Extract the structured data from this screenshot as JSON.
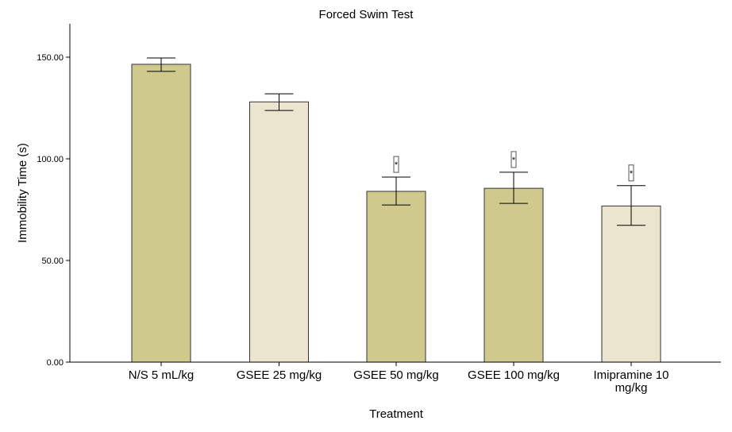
{
  "chart_data": {
    "type": "bar",
    "title": "Forced Swim Test",
    "xlabel": "Treatment",
    "ylabel": "Immobility Time (s)",
    "ylim": [
      0,
      165
    ],
    "yticks": [
      0,
      50,
      100,
      150
    ],
    "ytick_labels": [
      "0.00",
      "50.00",
      "100.00",
      "150.00"
    ],
    "grid": false,
    "categories": [
      "N/S 5 mL/kg",
      "GSEE 25 mg/kg",
      "GSEE 50 mg/kg",
      "GSEE 100 mg/kg",
      "Imipramine 10 mg/kg"
    ],
    "values": [
      146.5,
      128.0,
      84.0,
      85.5,
      76.8
    ],
    "error_upper": [
      149.6,
      132.0,
      91.0,
      93.4,
      86.8
    ],
    "error_lower": [
      143.0,
      123.8,
      77.3,
      78.1,
      67.3
    ],
    "significance": [
      "",
      "",
      "*",
      "*",
      "*"
    ],
    "bar_colors": [
      "#d0c98e",
      "#ebe5d0",
      "#d0c98e",
      "#d0c98e",
      "#ebe5d0"
    ]
  }
}
